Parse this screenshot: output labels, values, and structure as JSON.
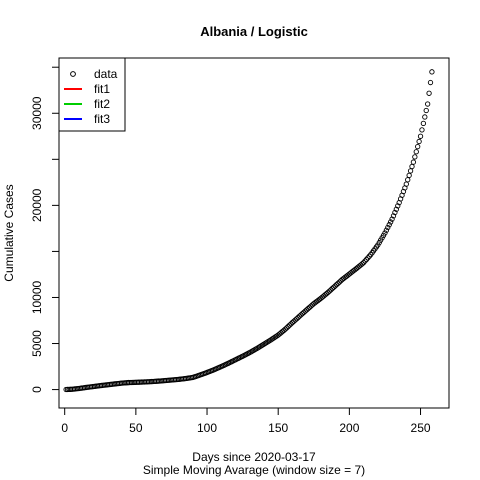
{
  "chart_data": {
    "type": "scatter",
    "title": "Albania / Logistic",
    "xlabel": "Days since 2020-03-17",
    "subtitle": "Simple Moving Avarage (window size = 7)",
    "ylabel": "Cumulative Cases",
    "xlim": [
      -4,
      270
    ],
    "ylim": [
      -2000,
      36000
    ],
    "x_ticks": [
      0,
      50,
      100,
      150,
      200,
      250
    ],
    "y_ticks": [
      0,
      5000,
      10000,
      15000,
      20000,
      25000,
      30000,
      35000
    ],
    "y_tick_labels": [
      "0",
      "5000",
      "10000",
      "",
      "20000",
      "",
      "30000",
      ""
    ],
    "legend": {
      "position": "top-left",
      "entries": [
        {
          "label": "data",
          "symbol": "circle",
          "color": "#000000"
        },
        {
          "label": "fit1",
          "symbol": "line",
          "color": "#ff0000"
        },
        {
          "label": "fit2",
          "symbol": "line",
          "color": "#00cd00"
        },
        {
          "label": "fit3",
          "symbol": "line",
          "color": "#0000ff"
        }
      ]
    },
    "series": [
      {
        "name": "data",
        "marker": "circle",
        "color": "#000000",
        "x": [
          1,
          5,
          10,
          15,
          20,
          25,
          30,
          35,
          40,
          45,
          50,
          55,
          60,
          65,
          70,
          75,
          80,
          85,
          90,
          95,
          100,
          105,
          110,
          115,
          120,
          125,
          130,
          135,
          140,
          145,
          150,
          155,
          160,
          165,
          170,
          175,
          180,
          185,
          190,
          195,
          200,
          205,
          210,
          215,
          220,
          225,
          230,
          235,
          240,
          245,
          250,
          255,
          258
        ],
        "y": [
          10,
          35,
          120,
          230,
          330,
          430,
          520,
          610,
          700,
          760,
          790,
          820,
          860,
          910,
          970,
          1040,
          1110,
          1200,
          1320,
          1580,
          1860,
          2160,
          2500,
          2860,
          3240,
          3620,
          4020,
          4460,
          4930,
          5410,
          5920,
          6560,
          7280,
          7970,
          8660,
          9330,
          9910,
          10550,
          11250,
          11950,
          12550,
          13150,
          13780,
          14650,
          15700,
          17000,
          18500,
          20300,
          22300,
          24700,
          27500,
          31000,
          34500
        ]
      }
    ]
  }
}
